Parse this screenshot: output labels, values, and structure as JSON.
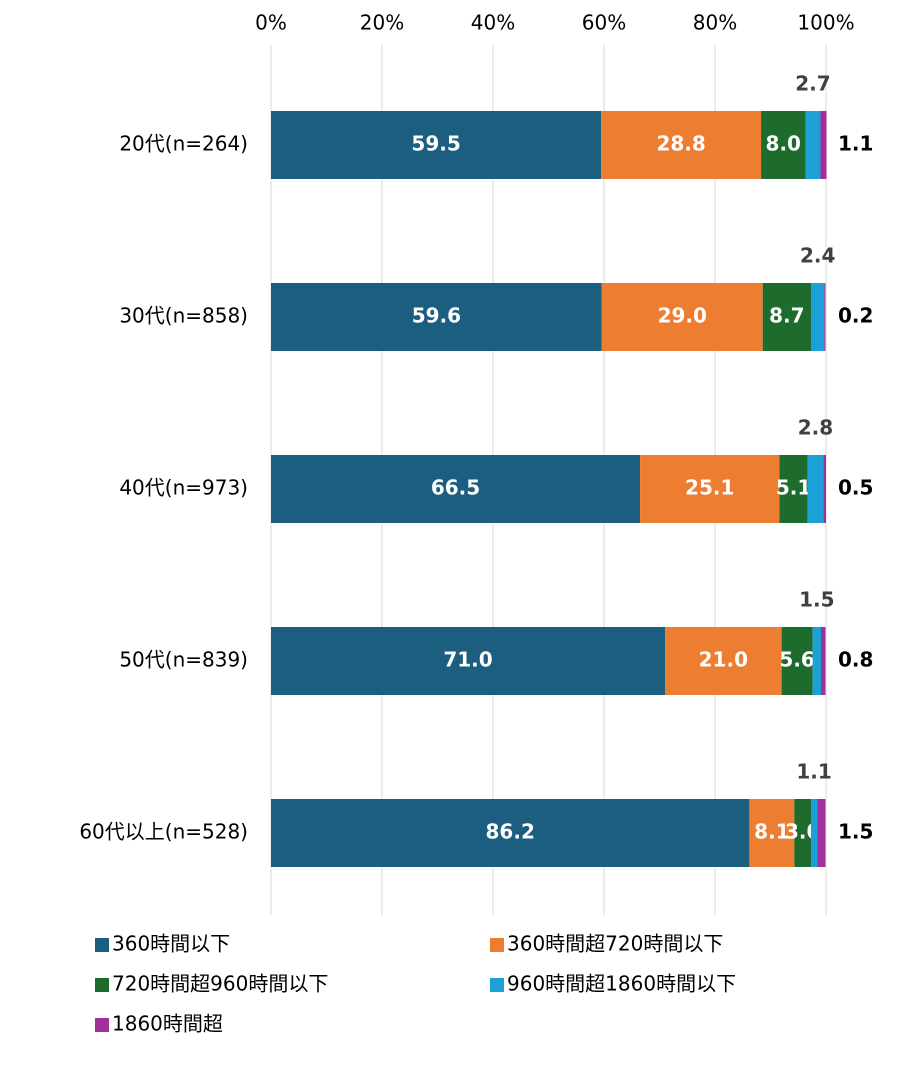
{
  "chart_data": {
    "type": "stacked_barh",
    "categories": [
      "20代(n=264)",
      "30代(n=858)",
      "40代(n=973)",
      "50代(n=839)",
      "60代以上(n=528)"
    ],
    "series": [
      {
        "name": "360時間以下",
        "color": "#1b5e80",
        "values": [
          59.5,
          59.6,
          66.5,
          71.0,
          86.2
        ],
        "value_labels": [
          "59.5",
          "59.6",
          "66.5",
          "71.0",
          "86.2"
        ]
      },
      {
        "name": "360時間超720時間以下",
        "color": "#ed7d31",
        "values": [
          28.8,
          29.0,
          25.1,
          21.0,
          8.1
        ],
        "value_labels": [
          "28.8",
          "29.0",
          "25.1",
          "21.0",
          "8.1"
        ]
      },
      {
        "name": "720時間超960時間以下",
        "color": "#1e6b2e",
        "values": [
          8.0,
          8.7,
          5.1,
          5.6,
          3.0
        ],
        "value_labels": [
          "8.0",
          "8.7",
          "5.1",
          "5.6",
          "3.0"
        ]
      },
      {
        "name": "960時間超1860時間以下",
        "color": "#1ba1d8",
        "values": [
          2.7,
          2.4,
          2.8,
          1.5,
          1.1
        ],
        "value_labels": [
          "2.7",
          "2.4",
          "2.8",
          "1.5",
          "1.1"
        ]
      },
      {
        "name": "1860時間超",
        "color": "#a0309a",
        "values": [
          1.1,
          0.2,
          0.5,
          0.8,
          1.5
        ],
        "value_labels": [
          "1.1",
          "0.2",
          "0.5",
          "0.8",
          "1.5"
        ]
      }
    ],
    "xlim": [
      0,
      100
    ],
    "xticks": [
      {
        "value": 0,
        "label": "0%"
      },
      {
        "value": 20,
        "label": "20%"
      },
      {
        "value": 40,
        "label": "40%"
      },
      {
        "value": 60,
        "label": "60%"
      },
      {
        "value": 80,
        "label": "80%"
      },
      {
        "value": 100,
        "label": "100%"
      }
    ],
    "grid": true,
    "legend": "bottom"
  }
}
